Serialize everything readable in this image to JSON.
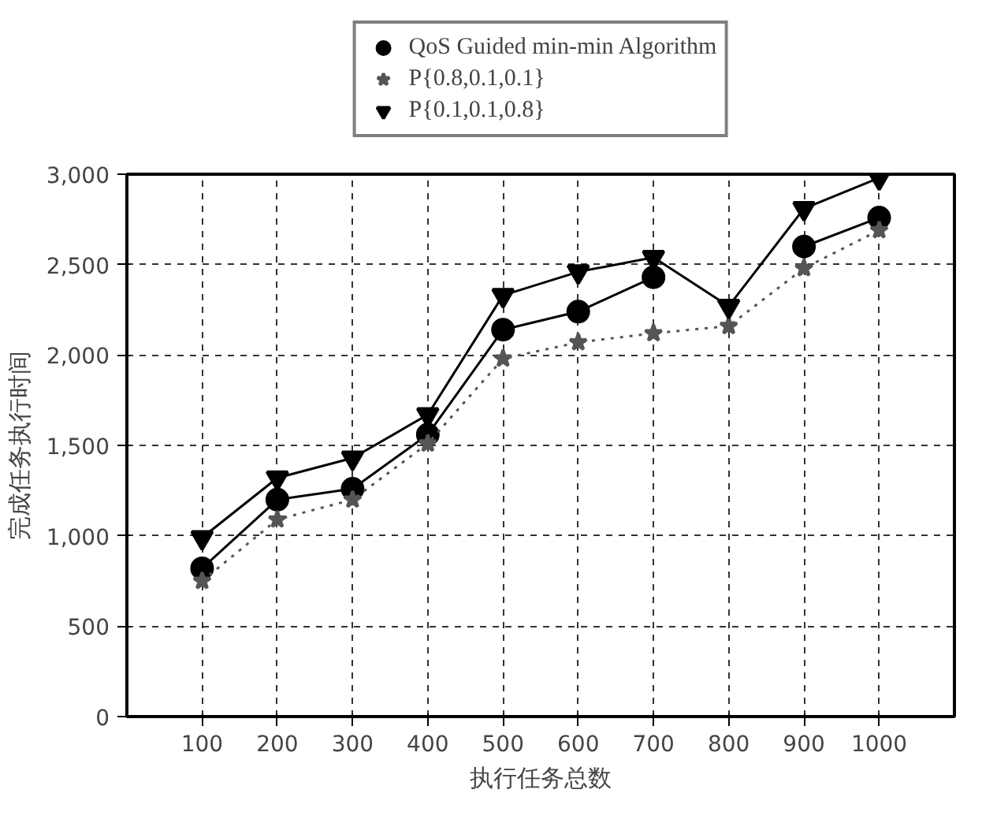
{
  "chart_data": {
    "type": "line",
    "xlabel": "执行任务总数",
    "ylabel": "完成任务执行时间",
    "x": [
      100,
      200,
      300,
      400,
      500,
      600,
      700,
      800,
      900,
      1000
    ],
    "series": [
      {
        "name": "QoS Guided min-min Algorithm",
        "color": "#000000",
        "marker": "circle",
        "line_style": "solid",
        "values": [
          820,
          1200,
          1260,
          1560,
          2140,
          2240,
          2430,
          null,
          2600,
          2760
        ]
      },
      {
        "name": "P{0.8,0.1,0.1}",
        "color": "#555555",
        "marker": "star",
        "line_style": "dotted",
        "values": [
          750,
          1090,
          1200,
          1510,
          1980,
          2070,
          2120,
          2160,
          2480,
          2690
        ]
      },
      {
        "name": "P{0.1,0.1,0.8}",
        "color": "#000000",
        "marker": "triangle",
        "line_style": "solid",
        "values": [
          990,
          1320,
          1430,
          1670,
          2330,
          2460,
          2540,
          2270,
          2810,
          2980
        ]
      }
    ],
    "xlim": [
      0,
      1100
    ],
    "ylim": [
      0,
      3000
    ],
    "xticks": [
      100,
      200,
      300,
      400,
      500,
      600,
      700,
      800,
      900,
      1000
    ],
    "yticks": [
      0,
      500,
      {
        "value": 1000,
        "label": "1,000"
      },
      {
        "value": 1500,
        "label": "1,500"
      },
      {
        "value": 2000,
        "label": "2,000"
      },
      {
        "value": 2500,
        "label": "2,500"
      },
      {
        "value": 3000,
        "label": "3,000"
      }
    ],
    "grid": true,
    "legend": "top"
  }
}
